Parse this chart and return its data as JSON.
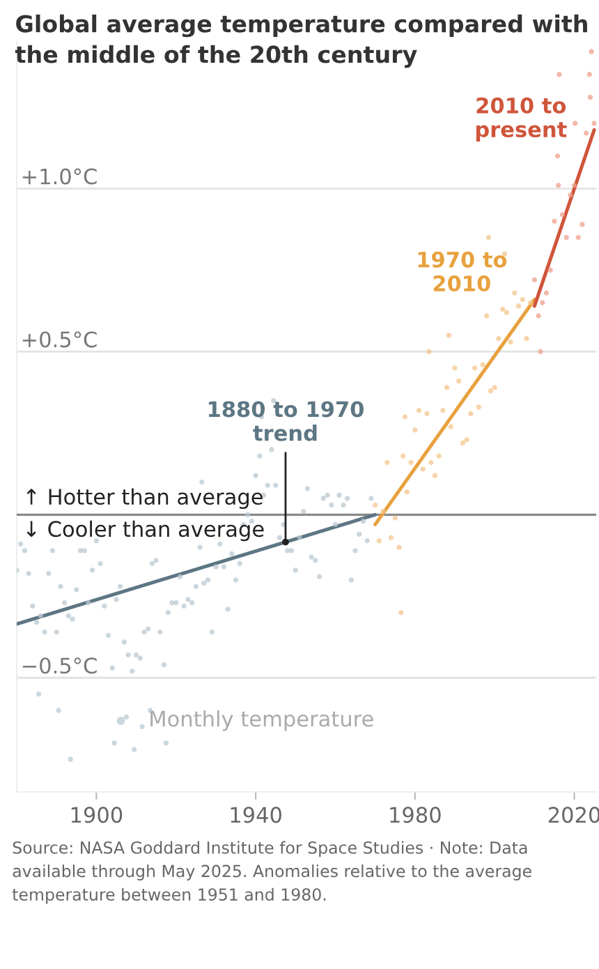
{
  "chart_data": {
    "type": "scatter",
    "title": "Global average temperature compared with the middle of the 20th century",
    "xlim": [
      1880,
      2025.5
    ],
    "xticks": [
      1900,
      1940,
      1980,
      2020
    ],
    "ylim": [
      -0.85,
      1.45
    ],
    "yticks": [
      {
        "value": 1.0,
        "label": "+1.0°C"
      },
      {
        "value": 0.5,
        "label": "+0.5°C"
      },
      {
        "value": 0,
        "label": null
      },
      {
        "value": -0.5,
        "label": "−0.5°C"
      }
    ],
    "grid": "y",
    "legend": "bottom",
    "ref_lines": [
      {
        "axis": "y",
        "value": 0,
        "color": "#8a8a8a"
      }
    ],
    "annotations": [
      "↑ Hotter than average",
      "↓ Cooler than average",
      "Source: NASA Goddard Institute for Space Studies · Note: Data available through May 2025. Anomalies relative to the average temperature between 1951 and 1980."
    ],
    "series": [
      {
        "name": "Monthly temperature",
        "marker": "circle",
        "color": "#b9c8d2",
        "x": [
          1880,
          1881,
          1882,
          1883,
          1884,
          1885,
          1886,
          1887,
          1888,
          1889,
          1890,
          1891,
          1892,
          1893,
          1894,
          1895,
          1896,
          1897,
          1898,
          1899,
          1900,
          1901,
          1902,
          1903,
          1904,
          1905,
          1906,
          1907,
          1908,
          1909,
          1910,
          1911,
          1912,
          1913,
          1914,
          1915,
          1916,
          1917,
          1918,
          1919,
          1920,
          1921,
          1922,
          1923,
          1924,
          1925,
          1926,
          1927,
          1928,
          1929,
          1930,
          1931,
          1932,
          1933,
          1934,
          1935,
          1936,
          1937,
          1938,
          1939,
          1940,
          1941,
          1942,
          1943,
          1944,
          1945,
          1946,
          1947,
          1948,
          1949,
          1950,
          1951,
          1952,
          1953,
          1954,
          1955,
          1956,
          1957,
          1958,
          1959,
          1960,
          1961,
          1962,
          1963,
          1964,
          1965,
          1966,
          1967,
          1968,
          1969,
          1890.5,
          1893.5,
          1904.5,
          1909.5,
          1911.5,
          1917.5,
          1885.5,
          1944.5,
          1941.5,
          1926.5,
          1913.5,
          1907.5
        ],
        "values": [
          -0.17,
          -0.09,
          -0.11,
          -0.18,
          -0.28,
          -0.33,
          -0.31,
          -0.36,
          -0.18,
          -0.11,
          -0.36,
          -0.22,
          -0.27,
          -0.31,
          -0.32,
          -0.23,
          -0.11,
          -0.11,
          -0.27,
          -0.17,
          -0.08,
          -0.15,
          -0.28,
          -0.37,
          -0.47,
          -0.26,
          -0.22,
          -0.39,
          -0.43,
          -0.48,
          -0.43,
          -0.44,
          -0.36,
          -0.35,
          -0.15,
          -0.14,
          -0.36,
          -0.46,
          -0.3,
          -0.27,
          -0.27,
          -0.19,
          -0.28,
          -0.26,
          -0.27,
          -0.22,
          -0.1,
          -0.21,
          -0.2,
          -0.36,
          -0.16,
          -0.09,
          -0.16,
          -0.29,
          -0.12,
          -0.2,
          -0.15,
          -0.03,
          0.0,
          -0.02,
          0.12,
          0.18,
          0.06,
          0.09,
          0.2,
          0.09,
          -0.07,
          -0.03,
          -0.11,
          -0.11,
          -0.17,
          -0.07,
          0.01,
          0.08,
          -0.13,
          -0.14,
          -0.19,
          0.05,
          0.06,
          0.03,
          -0.03,
          0.06,
          0.03,
          0.05,
          -0.2,
          -0.11,
          -0.06,
          -0.02,
          -0.08,
          0.05,
          -0.6,
          -0.75,
          -0.7,
          -0.72,
          -0.65,
          -0.7,
          -0.55,
          0.35,
          0.3,
          0.1,
          -0.6,
          -0.62
        ]
      },
      {
        "marker": "circle",
        "color": "#f3c58e",
        "x": [
          1970,
          1971,
          1972,
          1973,
          1974,
          1975,
          1976,
          1977,
          1978,
          1979,
          1980,
          1981,
          1982,
          1983,
          1984,
          1985,
          1986,
          1987,
          1988,
          1989,
          1990,
          1991,
          1992,
          1993,
          1994,
          1995,
          1996,
          1997,
          1998,
          1999,
          2000,
          2001,
          2002,
          2003,
          2004,
          2005,
          2006,
          2007,
          2008,
          2009,
          1977.5,
          1988.5,
          1998.5,
          1976.5,
          1983.5,
          2002.5
        ],
        "values": [
          0.03,
          -0.08,
          0.01,
          0.16,
          -0.07,
          -0.01,
          -0.1,
          0.18,
          0.07,
          0.16,
          0.26,
          0.32,
          0.14,
          0.31,
          0.16,
          0.12,
          0.18,
          0.32,
          0.39,
          0.27,
          0.45,
          0.41,
          0.22,
          0.23,
          0.31,
          0.45,
          0.33,
          0.46,
          0.61,
          0.38,
          0.39,
          0.54,
          0.63,
          0.62,
          0.53,
          0.68,
          0.64,
          0.66,
          0.54,
          0.65,
          0.3,
          0.55,
          0.85,
          -0.3,
          0.5,
          0.8
        ]
      },
      {
        "marker": "circle",
        "color": "#eea08e",
        "x": [
          2010,
          2011,
          2012,
          2013,
          2014,
          2015,
          2016,
          2017,
          2018,
          2019,
          2020,
          2021,
          2022,
          2023,
          2024,
          2025,
          2016.2,
          2020.2,
          2023.8,
          2024.3,
          2011.5,
          2015.8
        ],
        "values": [
          0.72,
          0.61,
          0.65,
          0.68,
          0.75,
          0.9,
          1.01,
          0.92,
          0.85,
          0.98,
          1.01,
          0.85,
          0.89,
          1.17,
          1.28,
          1.2,
          1.35,
          1.2,
          1.35,
          1.42,
          0.5,
          1.1
        ]
      },
      {
        "name": "1880 to 1970 trend",
        "type": "line",
        "color": "#5d7683",
        "x": [
          1880,
          1970
        ],
        "values": [
          -0.335,
          0.0
        ]
      },
      {
        "name": "1970 to 2010",
        "type": "line",
        "color": "#e8a13e",
        "x": [
          1970,
          2010
        ],
        "values": [
          -0.03,
          0.66
        ]
      },
      {
        "name": "2010 to present",
        "type": "line",
        "color": "#cf553a",
        "x": [
          2010,
          2025
        ],
        "values": [
          0.64,
          1.18
        ]
      }
    ]
  }
}
